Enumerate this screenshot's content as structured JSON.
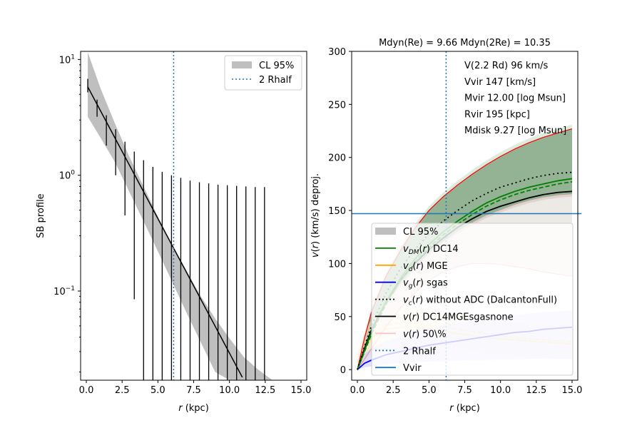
{
  "chart_data": [
    {
      "type": "line",
      "panel": "left",
      "title": "",
      "xlabel": "r (kpc)",
      "ylabel": "SB profile",
      "xlim": [
        -0.4,
        15.4
      ],
      "ylim_log10": [
        -1.77,
        1.07
      ],
      "yscale": "log",
      "xticks": [
        0.0,
        2.5,
        5.0,
        7.5,
        10.0,
        12.5,
        15.0
      ],
      "xtick_labels": [
        "0.0",
        "2.5",
        "5.0",
        "7.5",
        "10.0",
        "12.5",
        "15.0"
      ],
      "yticks_log10": [
        -1,
        0,
        1
      ],
      "ytick_labels": [
        "10^-1",
        "10^0",
        "10^1"
      ],
      "legend": {
        "position": "upper-right",
        "entries": [
          {
            "label": "CL 95%",
            "kind": "patch",
            "color": "#bfbfbf"
          },
          {
            "label": "2 Rhalf",
            "kind": "dotted",
            "color": "#1f77b4"
          }
        ]
      },
      "rhalf2_x": 6.1,
      "model_line": {
        "x": [
          0.1,
          10.9
        ],
        "y": [
          5.8,
          0.018
        ],
        "color": "#000000"
      },
      "band": {
        "x": [
          0.1,
          1.0,
          2.0,
          3.0,
          4.0,
          5.0,
          6.0,
          7.0,
          8.0,
          9.0,
          10.0,
          11.0,
          12.0,
          13.0
        ],
        "upper": [
          11.5,
          5.6,
          2.8,
          1.45,
          0.8,
          0.44,
          0.25,
          0.15,
          0.09,
          0.058,
          0.039,
          0.027,
          0.021,
          0.017
        ],
        "lower": [
          3.2,
          2.1,
          1.3,
          0.72,
          0.4,
          0.22,
          0.12,
          0.065,
          0.036,
          0.02,
          0.017,
          0.017,
          0.017,
          0.017
        ],
        "color": "#bfbfbf"
      },
      "error_bars": {
        "x": [
          0.1,
          0.75,
          1.4,
          2.05,
          2.7,
          3.35,
          4.0,
          4.65,
          5.3,
          5.95,
          6.6,
          7.25,
          7.9,
          8.55,
          9.2,
          9.85,
          10.5,
          11.15,
          11.8,
          12.45
        ],
        "top": [
          6.8,
          4.5,
          3.3,
          2.5,
          1.95,
          1.6,
          1.35,
          1.18,
          1.07,
          1.0,
          0.95,
          0.9,
          0.87,
          0.85,
          0.83,
          0.82,
          0.81,
          0.8,
          0.79,
          0.79
        ],
        "bottom": [
          5.2,
          3.2,
          1.8,
          1.0,
          0.45,
          0.085,
          0.017,
          0.017,
          0.017,
          0.017,
          0.017,
          0.017,
          0.017,
          0.017,
          0.017,
          0.017,
          0.017,
          0.017,
          0.017,
          0.017
        ]
      }
    },
    {
      "type": "line",
      "panel": "right",
      "title": "Mdyn(Re) = 9.66  Mdyn(2Re) = 10.35",
      "xlabel": "r (kpc)",
      "ylabel": "v(r) (km/s) deproj.",
      "xlim": [
        -0.4,
        15.4
      ],
      "ylim": [
        -10,
        300
      ],
      "xticks": [
        0.0,
        2.5,
        5.0,
        7.5,
        10.0,
        12.5,
        15.0
      ],
      "xtick_labels": [
        "0.0",
        "2.5",
        "5.0",
        "7.5",
        "10.0",
        "12.5",
        "15.0"
      ],
      "yticks": [
        0,
        50,
        100,
        150,
        200,
        250,
        300
      ],
      "ytick_labels": [
        "0",
        "50",
        "100",
        "150",
        "200",
        "250",
        "300"
      ],
      "annotations": [
        "V(2.2 Rd) 96 km/s",
        "Vvir 147 [km/s]",
        "Mvir 12.00 [log Msun]",
        "Rvir 195 [kpc]",
        "Mdisk 9.27 [log Msun]"
      ],
      "rhalf2_x": 6.2,
      "vvir": 147,
      "legend": {
        "position": "lower-center",
        "entries": [
          {
            "label": "CL 95%",
            "kind": "patch",
            "color": "#bfbfbf"
          },
          {
            "label": "v_DM(r) DC14",
            "kind": "solid",
            "color": "#008000"
          },
          {
            "label": "v_d(r) MGE",
            "kind": "solid",
            "color": "#ffa500"
          },
          {
            "label": "v_g(r) sgas",
            "kind": "solid",
            "color": "#0000ff"
          },
          {
            "label": "v_c(r) without ADC (DalcantonFull)",
            "kind": "dotted",
            "color": "#000000"
          },
          {
            "label": "v(r) DC14MGEsgasnone",
            "kind": "solid",
            "color": "#000000"
          },
          {
            "label": "v(r) 50\\%",
            "kind": "solid",
            "color": "#ffc0cb"
          },
          {
            "label": "2 Rhalf",
            "kind": "dotted",
            "color": "#1f77b4"
          },
          {
            "label": "Vvir",
            "kind": "solid",
            "color": "#1f77b4"
          }
        ]
      },
      "x": [
        0.0,
        0.5,
        1.0,
        2.0,
        3.0,
        4.0,
        5.0,
        6.0,
        7.0,
        8.0,
        9.0,
        10.0,
        11.0,
        12.0,
        13.0,
        14.0,
        15.0
      ],
      "series": [
        {
          "name": "CL 95% upper (red)",
          "color": "#ff0000",
          "values": [
            0,
            30,
            55,
            88,
            112,
            133,
            150,
            163,
            174,
            184,
            193,
            201,
            208,
            214,
            219,
            223,
            227
          ]
        },
        {
          "name": "CL 95% lower (red)",
          "color": "#ff0000",
          "values": [
            0,
            10,
            20,
            40,
            58,
            72,
            84,
            92,
            97,
            100,
            100,
            99,
            97,
            95,
            92,
            90,
            88
          ]
        },
        {
          "name": "v_c(r) without ADC",
          "color": "#000000",
          "dash": "dotted",
          "values": [
            0,
            22,
            42,
            72,
            95,
            113,
            128,
            140,
            150,
            159,
            166,
            172,
            176,
            180,
            183,
            185,
            186
          ]
        },
        {
          "name": "v_DM(r) DC14",
          "color": "#008000",
          "values": [
            0,
            18,
            36,
            64,
            86,
            104,
            118,
            130,
            140,
            149,
            157,
            163,
            168,
            172,
            175,
            178,
            180
          ]
        },
        {
          "name": "v_DM(r) DC14 (50%)",
          "color": "#008000",
          "dash": "dashed",
          "values": [
            0,
            17,
            34,
            62,
            84,
            101,
            115,
            127,
            137,
            146,
            154,
            160,
            165,
            169,
            172,
            175,
            177
          ]
        },
        {
          "name": "v(r) DC14MGEsgasnone",
          "color": "#000000",
          "values": [
            0,
            20,
            38,
            64,
            84,
            100,
            113,
            124,
            134,
            142,
            149,
            154,
            158,
            162,
            165,
            167,
            168
          ]
        },
        {
          "name": "v(r) 50%",
          "color": "#ffc0cb",
          "values": [
            0,
            19,
            36,
            61,
            80,
            96,
            109,
            120,
            130,
            138,
            145,
            150,
            155,
            159,
            162,
            164,
            165
          ]
        },
        {
          "name": "v_d(r) MGE",
          "color": "#ffa500",
          "values": [
            0,
            20,
            30,
            38,
            40,
            40,
            38,
            36,
            34,
            32,
            30,
            29,
            28,
            27,
            26,
            25,
            24
          ]
        },
        {
          "name": "v_d(r) MGE (50%)",
          "color": "#ffa500",
          "dash": "dashed",
          "values": [
            0,
            22,
            33,
            42,
            44,
            44,
            42,
            40,
            38,
            36,
            34,
            32,
            30,
            29,
            28,
            27,
            26
          ]
        },
        {
          "name": "v_g(r) sgas",
          "color": "#0000ff",
          "values": [
            0,
            6,
            9,
            14,
            17,
            20,
            23,
            25,
            27,
            29,
            31,
            33,
            35,
            36,
            38,
            39,
            40
          ]
        }
      ],
      "bands": [
        {
          "name": "DM band",
          "color": "#8fb08f",
          "opacity": 0.9
        },
        {
          "name": "disk band",
          "color": "#ffe8c8",
          "opacity": 0.5
        },
        {
          "name": "gas band",
          "color": "#c8c8ff",
          "opacity": 0.5,
          "upper": [
            0,
            15,
            20,
            27,
            32,
            36,
            39,
            42,
            44,
            46,
            48,
            50,
            51,
            53,
            54,
            55,
            56
          ],
          "lower": [
            0,
            2,
            3,
            5,
            6,
            7,
            7.5,
            8,
            8.5,
            9,
            9,
            9.5,
            9.5,
            10,
            10,
            10,
            10
          ]
        }
      ]
    }
  ]
}
